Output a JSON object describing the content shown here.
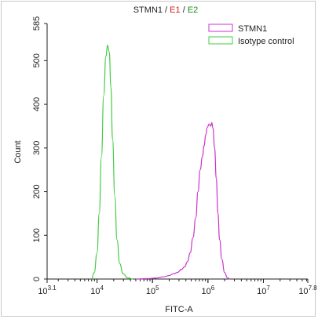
{
  "chart_data": {
    "type": "line",
    "title_parts": [
      {
        "text": "STMN1",
        "color": "#222222"
      },
      {
        "text": " / ",
        "color": "#222222"
      },
      {
        "text": "E1",
        "color": "#d42020"
      },
      {
        "text": " / ",
        "color": "#222222"
      },
      {
        "text": "E2",
        "color": "#1a8c1a"
      }
    ],
    "xlabel": "FITC-A",
    "ylabel": "Count",
    "x_scale": "log10",
    "xlim_log": [
      3.1,
      7.8
    ],
    "ylim": [
      0,
      585
    ],
    "x_ticks": [
      {
        "base": "10",
        "exp": "3.1",
        "value": 3.1
      },
      {
        "base": "10",
        "exp": "4",
        "value": 4
      },
      {
        "base": "10",
        "exp": "5",
        "value": 5
      },
      {
        "base": "10",
        "exp": "6",
        "value": 6
      },
      {
        "base": "10",
        "exp": "7",
        "value": 7
      },
      {
        "base": "10",
        "exp": "7.8",
        "value": 7.8
      }
    ],
    "y_ticks": [
      0,
      100,
      200,
      300,
      400,
      500,
      585
    ],
    "legend_position": "top-right",
    "series": [
      {
        "name": "STMN1",
        "color": "#cc33cc",
        "points_log": [
          [
            4.7,
            0
          ],
          [
            4.9,
            1
          ],
          [
            5.05,
            2
          ],
          [
            5.2,
            5
          ],
          [
            5.3,
            8
          ],
          [
            5.38,
            12
          ],
          [
            5.45,
            15
          ],
          [
            5.52,
            22
          ],
          [
            5.58,
            28
          ],
          [
            5.63,
            40
          ],
          [
            5.68,
            60
          ],
          [
            5.73,
            95
          ],
          [
            5.78,
            140
          ],
          [
            5.82,
            200
          ],
          [
            5.86,
            250
          ],
          [
            5.9,
            280
          ],
          [
            5.93,
            305
          ],
          [
            5.96,
            330
          ],
          [
            5.99,
            348
          ],
          [
            6.02,
            355
          ],
          [
            6.05,
            350
          ],
          [
            6.07,
            358
          ],
          [
            6.09,
            345
          ],
          [
            6.12,
            300
          ],
          [
            6.15,
            230
          ],
          [
            6.18,
            150
          ],
          [
            6.21,
            90
          ],
          [
            6.25,
            45
          ],
          [
            6.3,
            15
          ],
          [
            6.35,
            3
          ],
          [
            6.4,
            0
          ]
        ]
      },
      {
        "name": "Isotype control",
        "color": "#44cc44",
        "points_log": [
          [
            3.9,
            0
          ],
          [
            3.95,
            15
          ],
          [
            4.0,
            60
          ],
          [
            4.04,
            150
          ],
          [
            4.08,
            280
          ],
          [
            4.12,
            420
          ],
          [
            4.16,
            510
          ],
          [
            4.19,
            535
          ],
          [
            4.22,
            520
          ],
          [
            4.25,
            440
          ],
          [
            4.28,
            320
          ],
          [
            4.32,
            190
          ],
          [
            4.36,
            90
          ],
          [
            4.41,
            35
          ],
          [
            4.47,
            12
          ],
          [
            4.55,
            3
          ],
          [
            4.65,
            0
          ]
        ]
      }
    ]
  }
}
